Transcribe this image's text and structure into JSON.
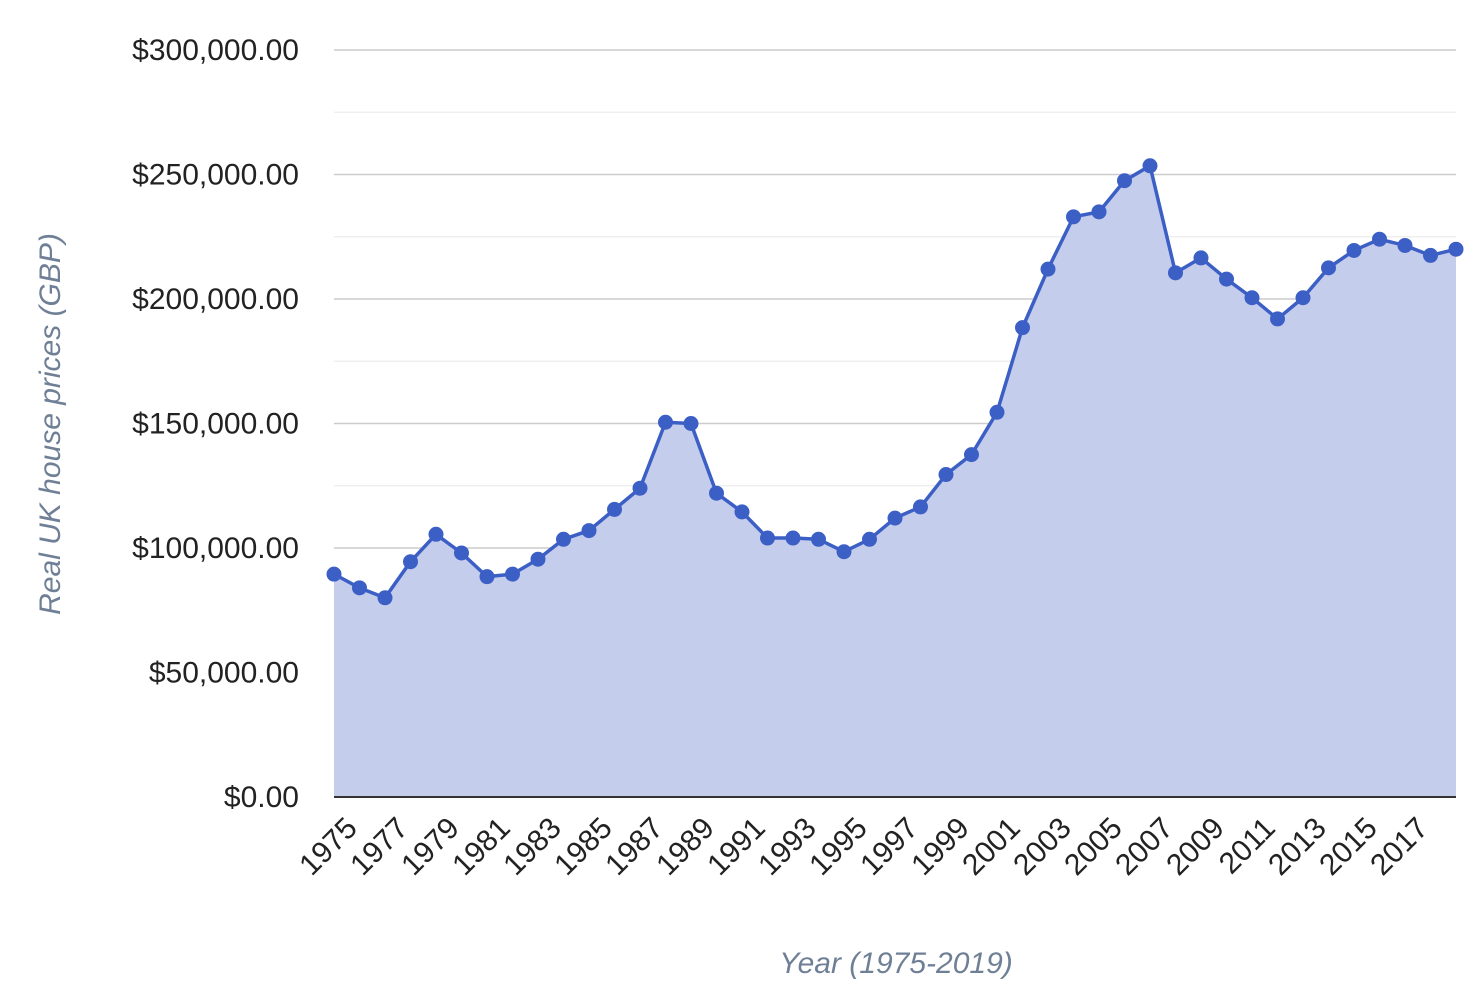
{
  "chart_data": {
    "type": "area",
    "title": "",
    "xlabel": "Year (1975-2019)",
    "ylabel": "Real UK house prices (GBP)",
    "x": [
      1975,
      1976,
      1977,
      1978,
      1979,
      1980,
      1981,
      1982,
      1983,
      1984,
      1985,
      1986,
      1987,
      1988,
      1989,
      1990,
      1991,
      1992,
      1993,
      1994,
      1995,
      1996,
      1997,
      1998,
      1999,
      2000,
      2001,
      2002,
      2003,
      2004,
      2005,
      2006,
      2007,
      2008,
      2009,
      2010,
      2011,
      2012,
      2013,
      2014,
      2015,
      2016,
      2017,
      2018,
      2019
    ],
    "x_tick_labels": [
      "1975",
      "1977",
      "1979",
      "1981",
      "1983",
      "1985",
      "1987",
      "1989",
      "1991",
      "1993",
      "1995",
      "1997",
      "1999",
      "2001",
      "2003",
      "2005",
      "2007",
      "2009",
      "2011",
      "2013",
      "2015",
      "2017"
    ],
    "y_tick_labels": [
      "$0.00",
      "$50,000.00",
      "$100,000.00",
      "$150,000.00",
      "$200,000.00",
      "$250,000.00",
      "$300,000.00"
    ],
    "ylim": [
      0,
      300000
    ],
    "grid": true,
    "legend": "none",
    "series": [
      {
        "values": [
          89500,
          84000,
          80000,
          94500,
          105500,
          98000,
          88500,
          89500,
          95500,
          103500,
          107000,
          115500,
          124000,
          150500,
          150000,
          122000,
          114500,
          104000,
          104000,
          103500,
          98500,
          103500,
          112000,
          116500,
          129500,
          137500,
          154500,
          188500,
          212000,
          233000,
          235000,
          247500,
          253500,
          210500,
          216500,
          208000,
          200500,
          192000,
          200500,
          212500,
          219500,
          224000,
          221500,
          217500,
          220000
        ],
        "color": "#3c5fc6",
        "fill": "#c5cdec"
      }
    ]
  }
}
